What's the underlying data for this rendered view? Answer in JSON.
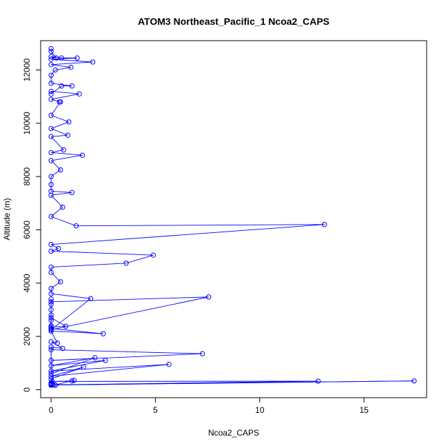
{
  "chart_data": {
    "type": "line",
    "title": "ATOM3 Northeast_Pacific_1 Ncoa2_CAPS",
    "xlabel": "Ncoa2_CAPS",
    "ylabel": "Altitude (m)",
    "xlim": [
      -0.5,
      18.0
    ],
    "ylim": [
      -300,
      13100
    ],
    "xticks": [
      0,
      5,
      10,
      15
    ],
    "xtick_labels": [
      "0",
      "5",
      "10",
      "15"
    ],
    "yticks": [
      0,
      2000,
      4000,
      6000,
      8000,
      10000,
      12000
    ],
    "ytick_labels": [
      "0",
      "2000",
      "4000",
      "6000",
      "8000",
      "10000",
      "12000"
    ],
    "grid": false,
    "legend": "none",
    "series": [
      {
        "color": "#0000ff",
        "marker": "open-circle",
        "x": [
          0.0,
          0.02,
          0.0,
          0.01,
          0.0,
          0.2,
          0.1,
          17.4,
          0.0,
          12.8,
          0.05,
          1.0,
          1.1,
          0.2,
          0.0,
          1.55,
          0.0,
          5.65,
          0.0,
          2.6,
          0.0,
          2.1,
          0.0,
          0.0,
          7.25,
          0.0,
          0.0,
          0.55,
          0.0,
          0.3,
          0.0,
          2.5,
          0.0,
          0.0,
          0.0,
          0.0,
          0.0,
          0.7,
          0.0,
          0.0,
          0.0,
          0.0,
          0.0,
          7.55,
          0.0,
          1.9,
          0.0,
          0.0,
          0.45,
          0.0,
          0.0,
          3.6,
          4.9,
          0.0,
          0.35,
          0.0,
          13.1,
          1.2,
          0.0,
          0.55,
          0.0,
          1.0,
          0.0,
          0.0,
          0.0,
          0.45,
          0.0,
          1.5,
          0.0,
          0.6,
          0.0,
          0.8,
          0.0,
          0.85,
          0.0,
          0.45,
          0.4,
          0.0,
          1.35,
          0.0,
          0.0,
          0.5,
          1.0,
          0.0,
          0.0,
          0.2,
          0.95,
          0.0,
          2.0,
          0.0,
          1.25,
          0.5,
          0.0,
          0.25,
          0.0,
          0.0
        ],
        "y": [
          200,
          220,
          250,
          180,
          170,
          170,
          175,
          330,
          180,
          320,
          310,
          330,
          350,
          180,
          400,
          850,
          500,
          950,
          700,
          1100,
          900,
          1200,
          600,
          1500,
          1350,
          1100,
          1600,
          1550,
          1800,
          1750,
          2200,
          2100,
          2300,
          2400,
          2600,
          2800,
          2350,
          2380,
          2700,
          3000,
          3200,
          3400,
          3300,
          3480,
          2250,
          3420,
          3600,
          3800,
          4050,
          4400,
          4600,
          4750,
          5050,
          5200,
          5300,
          5450,
          6200,
          6150,
          6500,
          6850,
          7300,
          7400,
          7450,
          7700,
          8000,
          8250,
          8600,
          8800,
          8900,
          9000,
          9500,
          9550,
          9800,
          10050,
          10300,
          10800,
          10800,
          10900,
          11100,
          11200,
          11100,
          11400,
          11400,
          11500,
          11800,
          12000,
          12100,
          12200,
          12300,
          12400,
          12450,
          12450,
          12500,
          12450,
          12700,
          12800
        ]
      }
    ]
  }
}
